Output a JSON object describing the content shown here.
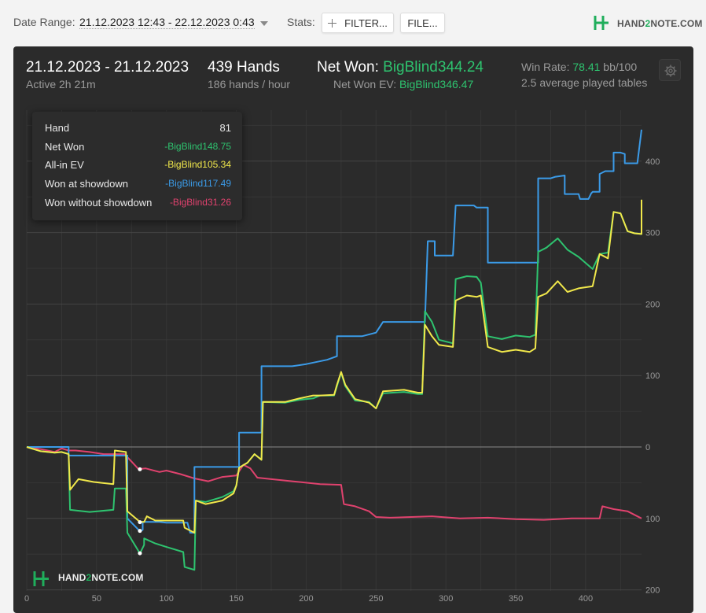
{
  "toolbar": {
    "date_range_label": "Date Range:",
    "date_range_value": "21.12.2023 12:43 - 22.12.2023 0:43",
    "stats_label": "Stats:",
    "filter_button": "FILTER...",
    "file_button": "FILE...",
    "brand_prefix": "HAND",
    "brand_two": "2",
    "brand_suffix": "NOTE.COM"
  },
  "summary": {
    "date": "21.12.2023 - 21.12.2023",
    "active": "Active 2h 21m",
    "hands": "439 Hands",
    "hands_per_hour": "186 hands / hour",
    "net_won_label": "Net Won:",
    "net_won_value": "BigBlind344.24",
    "net_won_ev_label": "Net Won  EV:",
    "net_won_ev_value": "BigBlind346.47",
    "win_rate_label": "Win Rate:",
    "win_rate_value": "78.41",
    "win_rate_unit": "bb/100",
    "avg_tables": "2.5 average played tables"
  },
  "tooltip": {
    "rows": [
      {
        "label": "Hand",
        "value": "81",
        "color": "#e9e9e9"
      },
      {
        "label": "Net Won",
        "value": "-BigBlind148.75",
        "color": "#2ec36f"
      },
      {
        "label": "All-in EV",
        "value": "-BigBlind105.34",
        "color": "#f1e84b"
      },
      {
        "label": "Won at showdown",
        "value": "-BigBlind117.49",
        "color": "#3b9be8"
      },
      {
        "label": "Won without showdown",
        "value": "-BigBlind31.26",
        "color": "#e0426e"
      }
    ]
  },
  "colors": {
    "net_won": "#2ec36f",
    "allin_ev": "#f1e84b",
    "showdown": "#3b9be8",
    "non_showdown": "#e0426e",
    "panel_bg": "#2b2b2b"
  },
  "icons": [
    "plus-icon",
    "chevron-down-icon",
    "gear-icon",
    "hand2note-logo-icon"
  ],
  "chart_data": {
    "type": "line",
    "xlabel": "",
    "ylabel": "",
    "xlim": [
      0,
      440
    ],
    "ylim": [
      -200,
      450
    ],
    "x_ticks": [
      0,
      50,
      100,
      150,
      200,
      250,
      300,
      350,
      400
    ],
    "y_ticks": [
      400,
      300,
      200,
      100,
      0,
      -100,
      -200
    ],
    "y_tick_labels": [
      "400",
      "300",
      "200",
      "100",
      "0",
      "100",
      "200"
    ],
    "grid": true,
    "hover_x": 81,
    "series": [
      {
        "name": "Won at showdown",
        "key": "showdown",
        "points": [
          [
            0,
            0
          ],
          [
            25,
            0
          ],
          [
            30,
            0
          ],
          [
            30,
            -12
          ],
          [
            72,
            -12
          ],
          [
            72,
            -100
          ],
          [
            81,
            -118
          ],
          [
            83,
            -116
          ],
          [
            83,
            -105
          ],
          [
            95,
            -105
          ],
          [
            100,
            -106
          ],
          [
            115,
            -106
          ],
          [
            117,
            -120
          ],
          [
            120,
            -120
          ],
          [
            120,
            -28
          ],
          [
            152,
            -28
          ],
          [
            152,
            20
          ],
          [
            168,
            20
          ],
          [
            168,
            113
          ],
          [
            190,
            113
          ],
          [
            200,
            116
          ],
          [
            215,
            122
          ],
          [
            222,
            127
          ],
          [
            222,
            155
          ],
          [
            240,
            155
          ],
          [
            250,
            160
          ],
          [
            255,
            175
          ],
          [
            285,
            175
          ],
          [
            287,
            288
          ],
          [
            292,
            288
          ],
          [
            292,
            268
          ],
          [
            305,
            268
          ],
          [
            307,
            338
          ],
          [
            320,
            338
          ],
          [
            322,
            335
          ],
          [
            330,
            335
          ],
          [
            330,
            258
          ],
          [
            366,
            258
          ],
          [
            366,
            376
          ],
          [
            375,
            376
          ],
          [
            378,
            378
          ],
          [
            385,
            380
          ],
          [
            385,
            354
          ],
          [
            395,
            354
          ],
          [
            396,
            347
          ],
          [
            402,
            347
          ],
          [
            404,
            355
          ],
          [
            405,
            357
          ],
          [
            410,
            357
          ],
          [
            410,
            382
          ],
          [
            414,
            386
          ],
          [
            420,
            386
          ],
          [
            420,
            412
          ],
          [
            425,
            412
          ],
          [
            428,
            410
          ],
          [
            428,
            397
          ],
          [
            437,
            397
          ],
          [
            440,
            444
          ]
        ]
      },
      {
        "name": "Net Won",
        "key": "net_won",
        "points": [
          [
            0,
            0
          ],
          [
            10,
            -6
          ],
          [
            20,
            -8
          ],
          [
            25,
            -7
          ],
          [
            30,
            -10
          ],
          [
            31,
            -88
          ],
          [
            45,
            -91
          ],
          [
            62,
            -88
          ],
          [
            63,
            -58
          ],
          [
            71,
            -58
          ],
          [
            72,
            -120
          ],
          [
            81,
            -149
          ],
          [
            84,
            -137
          ],
          [
            84,
            -128
          ],
          [
            92,
            -135
          ],
          [
            100,
            -140
          ],
          [
            112,
            -147
          ],
          [
            113,
            -168
          ],
          [
            120,
            -172
          ],
          [
            121,
            -75
          ],
          [
            128,
            -77
          ],
          [
            140,
            -70
          ],
          [
            148,
            -62
          ],
          [
            150,
            -54
          ],
          [
            152,
            -29
          ],
          [
            158,
            -22
          ],
          [
            163,
            -10
          ],
          [
            168,
            -18
          ],
          [
            169,
            63
          ],
          [
            185,
            62
          ],
          [
            195,
            66
          ],
          [
            205,
            68
          ],
          [
            210,
            72
          ],
          [
            220,
            72
          ],
          [
            222,
            85
          ],
          [
            225,
            104
          ],
          [
            228,
            85
          ],
          [
            235,
            65
          ],
          [
            245,
            63
          ],
          [
            250,
            54
          ],
          [
            255,
            75
          ],
          [
            270,
            77
          ],
          [
            280,
            74
          ],
          [
            283,
            74
          ],
          [
            285,
            190
          ],
          [
            290,
            175
          ],
          [
            295,
            150
          ],
          [
            305,
            145
          ],
          [
            307,
            235
          ],
          [
            315,
            239
          ],
          [
            322,
            238
          ],
          [
            325,
            230
          ],
          [
            330,
            155
          ],
          [
            340,
            151
          ],
          [
            350,
            156
          ],
          [
            360,
            154
          ],
          [
            364,
            157
          ],
          [
            366,
            273
          ],
          [
            372,
            279
          ],
          [
            380,
            292
          ],
          [
            387,
            276
          ],
          [
            395,
            266
          ],
          [
            405,
            249
          ],
          [
            410,
            270
          ],
          [
            416,
            272
          ],
          [
            420,
            329
          ],
          [
            425,
            327
          ],
          [
            430,
            302
          ],
          [
            435,
            299
          ],
          [
            440,
            298
          ],
          [
            440,
            344
          ]
        ]
      },
      {
        "name": "All-in EV",
        "key": "allin_ev",
        "points": [
          [
            0,
            0
          ],
          [
            10,
            -6
          ],
          [
            20,
            -8
          ],
          [
            25,
            -7
          ],
          [
            30,
            -10
          ],
          [
            31,
            -60
          ],
          [
            37,
            -45
          ],
          [
            48,
            -49
          ],
          [
            62,
            -52
          ],
          [
            63,
            -5
          ],
          [
            71,
            -7
          ],
          [
            72,
            -90
          ],
          [
            81,
            -105
          ],
          [
            84,
            -105
          ],
          [
            86,
            -97
          ],
          [
            92,
            -103
          ],
          [
            100,
            -103
          ],
          [
            112,
            -103
          ],
          [
            113,
            -113
          ],
          [
            120,
            -120
          ],
          [
            121,
            -75
          ],
          [
            128,
            -80
          ],
          [
            140,
            -75
          ],
          [
            148,
            -65
          ],
          [
            150,
            -54
          ],
          [
            152,
            -29
          ],
          [
            158,
            -22
          ],
          [
            163,
            -10
          ],
          [
            168,
            -18
          ],
          [
            169,
            63
          ],
          [
            185,
            63
          ],
          [
            195,
            68
          ],
          [
            205,
            72
          ],
          [
            210,
            72
          ],
          [
            220,
            73
          ],
          [
            222,
            87
          ],
          [
            225,
            105
          ],
          [
            228,
            87
          ],
          [
            235,
            67
          ],
          [
            245,
            62
          ],
          [
            250,
            54
          ],
          [
            255,
            78
          ],
          [
            270,
            80
          ],
          [
            280,
            76
          ],
          [
            283,
            76
          ],
          [
            285,
            171
          ],
          [
            290,
            155
          ],
          [
            295,
            143
          ],
          [
            305,
            140
          ],
          [
            307,
            205
          ],
          [
            315,
            212
          ],
          [
            322,
            210
          ],
          [
            325,
            212
          ],
          [
            330,
            140
          ],
          [
            340,
            133
          ],
          [
            350,
            136
          ],
          [
            360,
            133
          ],
          [
            364,
            138
          ],
          [
            366,
            210
          ],
          [
            372,
            215
          ],
          [
            380,
            232
          ],
          [
            387,
            217
          ],
          [
            395,
            222
          ],
          [
            405,
            225
          ],
          [
            410,
            270
          ],
          [
            416,
            264
          ],
          [
            420,
            329
          ],
          [
            425,
            327
          ],
          [
            430,
            302
          ],
          [
            435,
            299
          ],
          [
            440,
            298
          ],
          [
            440,
            346
          ]
        ]
      },
      {
        "name": "Won without showdown",
        "key": "non_showdown",
        "points": [
          [
            0,
            0
          ],
          [
            10,
            -3
          ],
          [
            20,
            -7
          ],
          [
            25,
            -2
          ],
          [
            30,
            -5
          ],
          [
            35,
            -5
          ],
          [
            45,
            -7
          ],
          [
            55,
            -10
          ],
          [
            70,
            -10
          ],
          [
            80,
            -31
          ],
          [
            85,
            -30
          ],
          [
            95,
            -35
          ],
          [
            100,
            -33
          ],
          [
            110,
            -38
          ],
          [
            120,
            -44
          ],
          [
            130,
            -48
          ],
          [
            140,
            -42
          ],
          [
            150,
            -40
          ],
          [
            155,
            -25
          ],
          [
            160,
            -30
          ],
          [
            165,
            -43
          ],
          [
            175,
            -45
          ],
          [
            190,
            -48
          ],
          [
            210,
            -52
          ],
          [
            225,
            -53
          ],
          [
            227,
            -80
          ],
          [
            235,
            -83
          ],
          [
            245,
            -90
          ],
          [
            250,
            -98
          ],
          [
            260,
            -99
          ],
          [
            275,
            -98
          ],
          [
            290,
            -97
          ],
          [
            310,
            -100
          ],
          [
            330,
            -99
          ],
          [
            350,
            -101
          ],
          [
            370,
            -102
          ],
          [
            390,
            -100
          ],
          [
            410,
            -100
          ],
          [
            412,
            -83
          ],
          [
            420,
            -87
          ],
          [
            430,
            -90
          ],
          [
            440,
            -100
          ]
        ]
      }
    ]
  }
}
